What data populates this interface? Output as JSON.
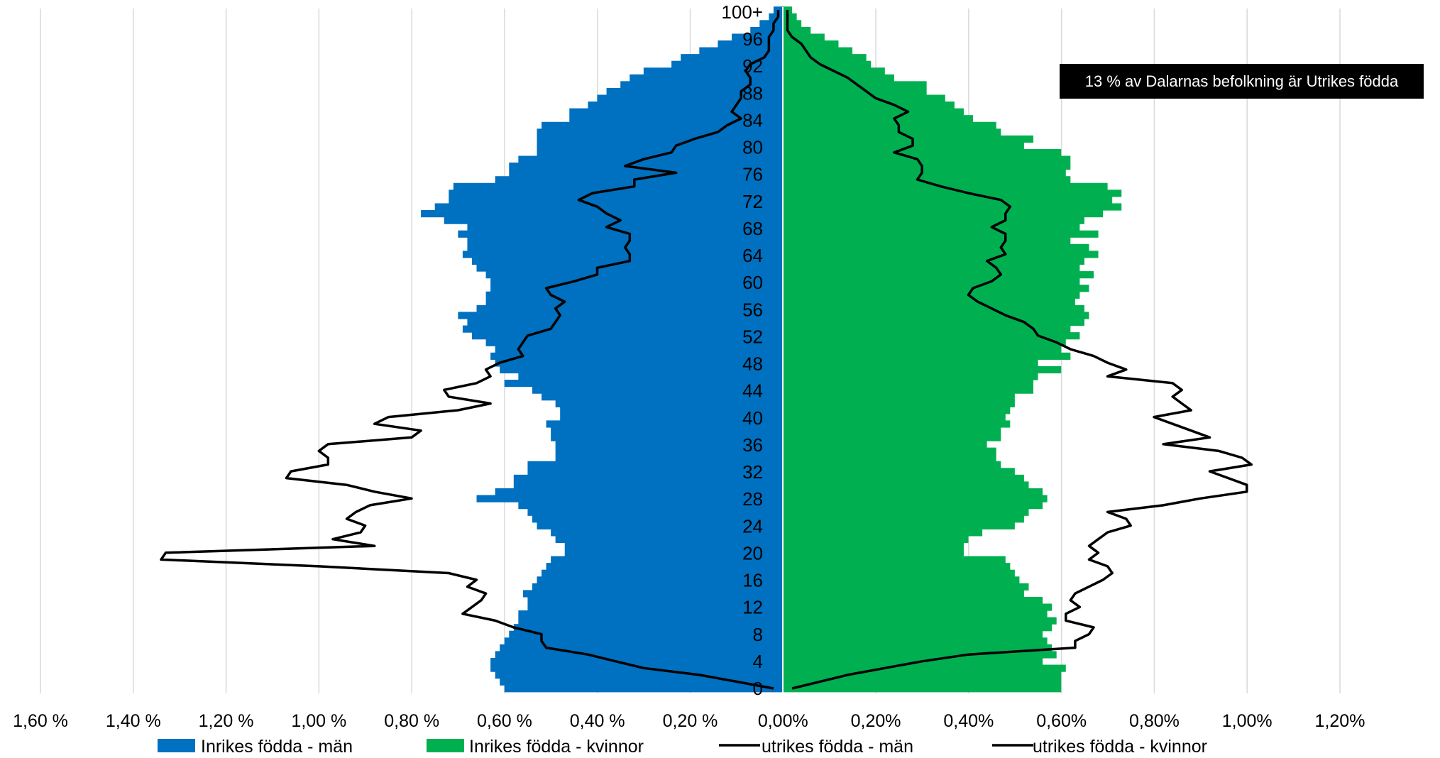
{
  "annotation": "13 % av Dalarnas befolkning är Utrikes födda",
  "colors": {
    "men": "#0070C0",
    "women": "#00B050",
    "line": "#000000",
    "grid": "#D9D9D9"
  },
  "chart_data": {
    "type": "bar",
    "subtype": "population-pyramid",
    "orientation": "horizontal",
    "title": "",
    "x_tick_labels": [
      "1,60 %",
      "1,40 %",
      "1,20 %",
      "1,00 %",
      "0,80 %",
      "0,60 %",
      "0,40 %",
      "0,20 %",
      "0,00%",
      "0,20%",
      "0,40%",
      "0,60%",
      "0,80%",
      "1,00%",
      "1,20%"
    ],
    "y_tick_labels": [
      "100+",
      "96",
      "92",
      "88",
      "84",
      "80",
      "76",
      "72",
      "68",
      "64",
      "60",
      "56",
      "52",
      "48",
      "44",
      "40",
      "36",
      "32",
      "28",
      "24",
      "20",
      "16",
      "12",
      "8",
      "4",
      "0"
    ],
    "xlim_percent": [
      -1.6,
      1.2
    ],
    "grid": "vertical",
    "legend_position": "bottom",
    "legend": [
      "Inrikes födda - män",
      "Inrikes födda - kvinnor",
      "utrikes födda - män",
      "utrikes födda - kvinnor"
    ],
    "ages": [
      0,
      1,
      2,
      3,
      4,
      5,
      6,
      7,
      8,
      9,
      10,
      11,
      12,
      13,
      14,
      15,
      16,
      17,
      18,
      19,
      20,
      21,
      22,
      23,
      24,
      25,
      26,
      27,
      28,
      29,
      30,
      31,
      32,
      33,
      34,
      35,
      36,
      37,
      38,
      39,
      40,
      41,
      42,
      43,
      44,
      45,
      46,
      47,
      48,
      49,
      50,
      51,
      52,
      53,
      54,
      55,
      56,
      57,
      58,
      59,
      60,
      61,
      62,
      63,
      64,
      65,
      66,
      67,
      68,
      69,
      70,
      71,
      72,
      73,
      74,
      75,
      76,
      77,
      78,
      79,
      80,
      81,
      82,
      83,
      84,
      85,
      86,
      87,
      88,
      89,
      90,
      91,
      92,
      93,
      94,
      95,
      96,
      97,
      98,
      99,
      100
    ],
    "series": [
      {
        "name": "Inrikes födda - män",
        "side": "left",
        "kind": "bar",
        "values": [
          0.6,
          0.61,
          0.62,
          0.63,
          0.63,
          0.62,
          0.61,
          0.6,
          0.59,
          0.58,
          0.57,
          0.57,
          0.55,
          0.55,
          0.56,
          0.54,
          0.53,
          0.52,
          0.51,
          0.5,
          0.47,
          0.47,
          0.49,
          0.5,
          0.53,
          0.54,
          0.55,
          0.57,
          0.66,
          0.62,
          0.58,
          0.58,
          0.55,
          0.55,
          0.49,
          0.49,
          0.49,
          0.5,
          0.5,
          0.51,
          0.48,
          0.48,
          0.49,
          0.52,
          0.54,
          0.6,
          0.57,
          0.61,
          0.62,
          0.63,
          0.62,
          0.64,
          0.67,
          0.69,
          0.68,
          0.7,
          0.66,
          0.64,
          0.64,
          0.63,
          0.63,
          0.64,
          0.66,
          0.67,
          0.69,
          0.68,
          0.68,
          0.7,
          0.68,
          0.73,
          0.78,
          0.75,
          0.72,
          0.72,
          0.71,
          0.62,
          0.59,
          0.59,
          0.57,
          0.53,
          0.53,
          0.53,
          0.53,
          0.52,
          0.46,
          0.46,
          0.42,
          0.4,
          0.38,
          0.35,
          0.33,
          0.3,
          0.24,
          0.22,
          0.18,
          0.14,
          0.11,
          0.07,
          0.05,
          0.03,
          0.02
        ]
      },
      {
        "name": "Inrikes födda - kvinnor",
        "side": "right",
        "kind": "bar",
        "values": [
          0.6,
          0.6,
          0.6,
          0.61,
          0.56,
          0.59,
          0.58,
          0.57,
          0.56,
          0.58,
          0.59,
          0.57,
          0.58,
          0.56,
          0.52,
          0.53,
          0.51,
          0.5,
          0.49,
          0.48,
          0.39,
          0.39,
          0.4,
          0.43,
          0.5,
          0.52,
          0.53,
          0.56,
          0.57,
          0.56,
          0.53,
          0.52,
          0.5,
          0.47,
          0.46,
          0.46,
          0.44,
          0.47,
          0.47,
          0.49,
          0.48,
          0.49,
          0.5,
          0.5,
          0.54,
          0.54,
          0.55,
          0.6,
          0.55,
          0.62,
          0.6,
          0.61,
          0.64,
          0.62,
          0.65,
          0.66,
          0.65,
          0.63,
          0.64,
          0.66,
          0.64,
          0.67,
          0.64,
          0.65,
          0.68,
          0.66,
          0.62,
          0.68,
          0.64,
          0.65,
          0.69,
          0.73,
          0.71,
          0.73,
          0.7,
          0.62,
          0.61,
          0.62,
          0.62,
          0.6,
          0.52,
          0.54,
          0.47,
          0.46,
          0.41,
          0.39,
          0.37,
          0.35,
          0.31,
          0.31,
          0.24,
          0.22,
          0.19,
          0.18,
          0.15,
          0.12,
          0.09,
          0.06,
          0.04,
          0.03,
          0.02
        ]
      },
      {
        "name": "utrikes födda - män",
        "side": "left",
        "kind": "line",
        "values": [
          0.02,
          0.1,
          0.18,
          0.3,
          0.36,
          0.42,
          0.51,
          0.52,
          0.52,
          0.58,
          0.62,
          0.69,
          0.67,
          0.65,
          0.64,
          0.68,
          0.66,
          0.72,
          1.0,
          1.34,
          1.33,
          0.88,
          0.97,
          0.91,
          0.9,
          0.94,
          0.92,
          0.89,
          0.8,
          0.88,
          0.94,
          1.07,
          1.06,
          0.98,
          0.98,
          1.0,
          0.98,
          0.8,
          0.78,
          0.88,
          0.85,
          0.7,
          0.63,
          0.72,
          0.73,
          0.66,
          0.63,
          0.64,
          0.61,
          0.56,
          0.57,
          0.56,
          0.55,
          0.5,
          0.49,
          0.48,
          0.49,
          0.47,
          0.5,
          0.51,
          0.45,
          0.4,
          0.4,
          0.33,
          0.33,
          0.34,
          0.33,
          0.33,
          0.38,
          0.35,
          0.38,
          0.4,
          0.44,
          0.41,
          0.32,
          0.32,
          0.23,
          0.34,
          0.3,
          0.24,
          0.23,
          0.19,
          0.14,
          0.12,
          0.09,
          0.11,
          0.1,
          0.09,
          0.09,
          0.07,
          0.07,
          0.08,
          0.07,
          0.04,
          0.03,
          0.03,
          0.03,
          0.02,
          0.02,
          0.01,
          0.01
        ]
      },
      {
        "name": "utrikes födda - kvinnor",
        "side": "right",
        "kind": "line",
        "values": [
          0.02,
          0.08,
          0.14,
          0.22,
          0.3,
          0.4,
          0.63,
          0.63,
          0.66,
          0.67,
          0.61,
          0.61,
          0.64,
          0.62,
          0.63,
          0.66,
          0.69,
          0.71,
          0.7,
          0.66,
          0.68,
          0.66,
          0.68,
          0.7,
          0.75,
          0.74,
          0.7,
          0.82,
          0.9,
          1.0,
          1.0,
          0.96,
          0.92,
          1.01,
          0.99,
          0.94,
          0.82,
          0.92,
          0.88,
          0.84,
          0.8,
          0.88,
          0.86,
          0.84,
          0.86,
          0.84,
          0.7,
          0.74,
          0.7,
          0.67,
          0.62,
          0.59,
          0.55,
          0.54,
          0.52,
          0.48,
          0.45,
          0.42,
          0.4,
          0.41,
          0.45,
          0.47,
          0.46,
          0.44,
          0.48,
          0.47,
          0.48,
          0.48,
          0.45,
          0.48,
          0.48,
          0.49,
          0.47,
          0.4,
          0.34,
          0.29,
          0.3,
          0.3,
          0.29,
          0.24,
          0.28,
          0.28,
          0.25,
          0.25,
          0.24,
          0.27,
          0.24,
          0.2,
          0.18,
          0.16,
          0.14,
          0.11,
          0.08,
          0.06,
          0.05,
          0.04,
          0.02,
          0.01,
          0.01,
          0.01,
          0.01
        ]
      }
    ]
  }
}
